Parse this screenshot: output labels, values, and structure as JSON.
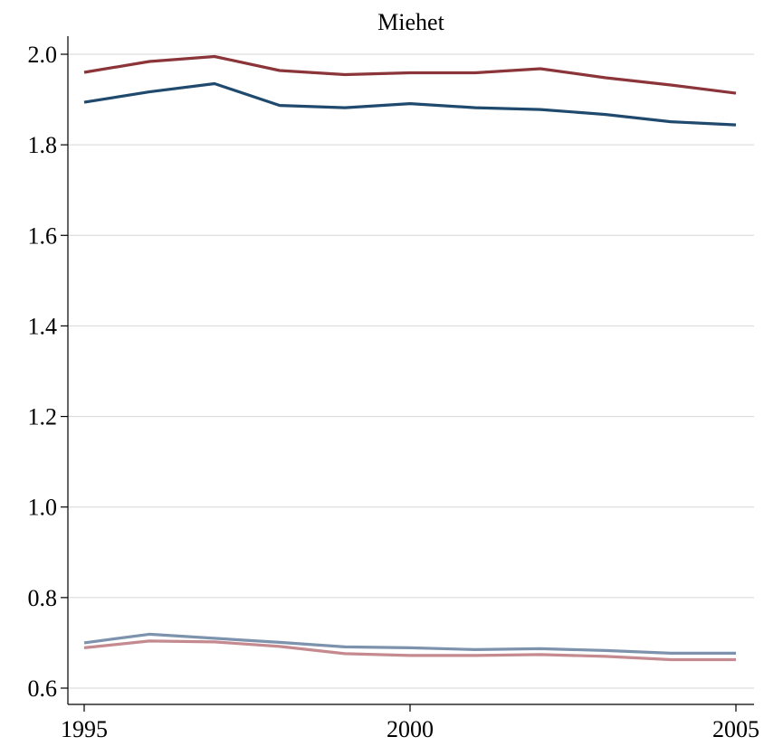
{
  "chart_data": {
    "type": "line",
    "title": "Miehet",
    "xlabel": "",
    "ylabel": "",
    "xlim": [
      1995,
      2005
    ],
    "ylim": [
      0.6,
      2.0
    ],
    "x_ticks": [
      1995,
      2000,
      2005
    ],
    "y_ticks": [
      "0.6",
      "0.8",
      "1.0",
      "1.2",
      "1.4",
      "1.6",
      "1.8",
      "2.0"
    ],
    "grid": true,
    "legend": "none",
    "x": [
      1995,
      1996,
      1997,
      1998,
      1999,
      2000,
      2001,
      2002,
      2003,
      2004,
      2005
    ],
    "series": [
      {
        "color": "#8b3439",
        "values": [
          1.96,
          1.984,
          1.995,
          1.964,
          1.955,
          1.959,
          1.959,
          1.968,
          1.948,
          1.932,
          1.914
        ]
      },
      {
        "color": "#1f4a6e",
        "values": [
          1.894,
          1.917,
          1.935,
          1.887,
          1.882,
          1.891,
          1.882,
          1.878,
          1.867,
          1.851,
          1.844
        ]
      },
      {
        "color": "#7d93ad",
        "values": [
          0.7,
          0.719,
          0.71,
          0.701,
          0.691,
          0.689,
          0.685,
          0.687,
          0.683,
          0.677,
          0.677
        ]
      },
      {
        "color": "#c48a8f",
        "values": [
          0.689,
          0.704,
          0.702,
          0.692,
          0.676,
          0.672,
          0.672,
          0.674,
          0.67,
          0.663,
          0.663
        ]
      }
    ]
  }
}
